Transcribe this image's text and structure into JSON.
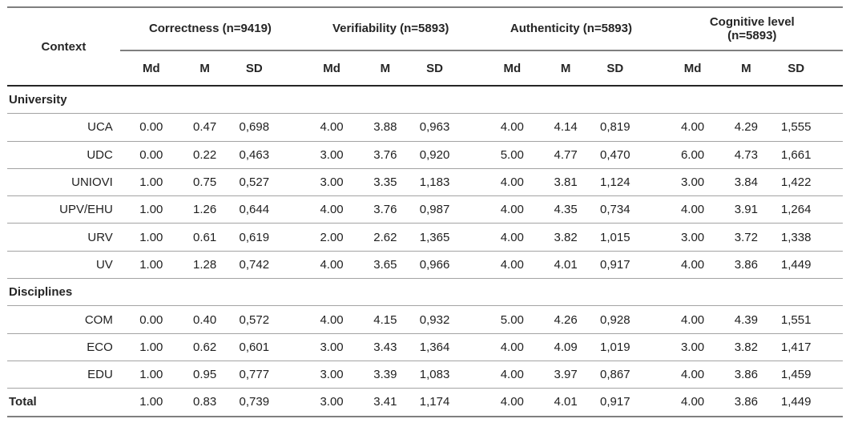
{
  "table": {
    "context_header": "Context",
    "groups": [
      {
        "label": "Correctness (n=9419)"
      },
      {
        "label": "Verifiability (n=5893)"
      },
      {
        "label": "Authenticity (n=5893)"
      },
      {
        "label": "Cognitive level (n=5893)"
      }
    ],
    "sub_headers": [
      "Md",
      "M",
      "SD"
    ],
    "sections": [
      {
        "label": "University",
        "rows": [
          {
            "label": "UCA",
            "values": [
              "0.00",
              "0.47",
              "0,698",
              "4.00",
              "3.88",
              "0,963",
              "4.00",
              "4.14",
              "0,819",
              "4.00",
              "4.29",
              "1,555"
            ]
          },
          {
            "label": "UDC",
            "values": [
              "0.00",
              "0.22",
              "0,463",
              "3.00",
              "3.76",
              "0,920",
              "5.00",
              "4.77",
              "0,470",
              "6.00",
              "4.73",
              "1,661"
            ]
          },
          {
            "label": "UNIOVI",
            "values": [
              "1.00",
              "0.75",
              "0,527",
              "3.00",
              "3.35",
              "1,183",
              "4.00",
              "3.81",
              "1,124",
              "3.00",
              "3.84",
              "1,422"
            ]
          },
          {
            "label": "UPV/EHU",
            "values": [
              "1.00",
              "1.26",
              "0,644",
              "4.00",
              "3.76",
              "0,987",
              "4.00",
              "4.35",
              "0,734",
              "4.00",
              "3.91",
              "1,264"
            ]
          },
          {
            "label": "URV",
            "values": [
              "1.00",
              "0.61",
              "0,619",
              "2.00",
              "2.62",
              "1,365",
              "4.00",
              "3.82",
              "1,015",
              "3.00",
              "3.72",
              "1,338"
            ]
          },
          {
            "label": "UV",
            "values": [
              "1.00",
              "1.28",
              "0,742",
              "4.00",
              "3.65",
              "0,966",
              "4.00",
              "4.01",
              "0,917",
              "4.00",
              "3.86",
              "1,449"
            ]
          }
        ]
      },
      {
        "label": "Disciplines",
        "rows": [
          {
            "label": "COM",
            "values": [
              "0.00",
              "0.40",
              "0,572",
              "4.00",
              "4.15",
              "0,932",
              "5.00",
              "4.26",
              "0,928",
              "4.00",
              "4.39",
              "1,551"
            ]
          },
          {
            "label": "ECO",
            "values": [
              "1.00",
              "0.62",
              "0,601",
              "3.00",
              "3.43",
              "1,364",
              "4.00",
              "4.09",
              "1,019",
              "3.00",
              "3.82",
              "1,417"
            ]
          },
          {
            "label": "EDU",
            "values": [
              "1.00",
              "0.95",
              "0,777",
              "3.00",
              "3.39",
              "1,083",
              "4.00",
              "3.97",
              "0,867",
              "4.00",
              "3.86",
              "1,459"
            ]
          }
        ]
      }
    ],
    "total": {
      "label": "Total",
      "values": [
        "1.00",
        "0.83",
        "0,739",
        "3.00",
        "3.41",
        "1,174",
        "4.00",
        "4.01",
        "0,917",
        "4.00",
        "3.86",
        "1,449"
      ]
    }
  },
  "colors": {
    "rule_light": "#a3a3a3",
    "rule_medium": "#7f7f7f",
    "rule_dark": "#262626",
    "text": "#1f1f1f"
  }
}
